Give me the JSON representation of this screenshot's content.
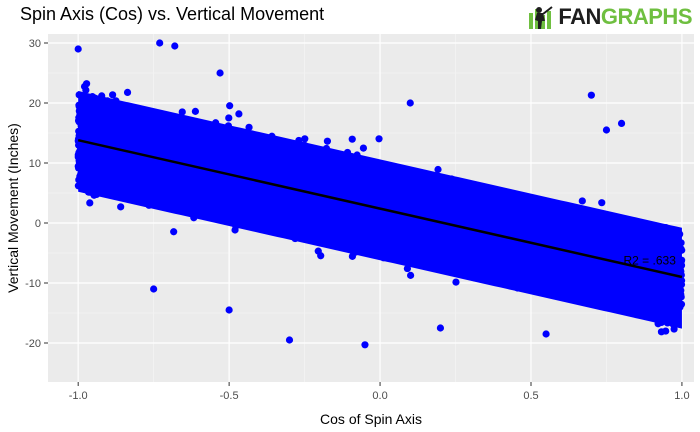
{
  "header": {
    "title": "Spin Axis (Cos) vs. Vertical Movement",
    "brand_fan": "FAN",
    "brand_graphs": "GRAPHS",
    "brand_icon": "batter-logo-icon"
  },
  "chart_data": {
    "type": "scatter",
    "title": "Spin Axis (Cos) vs. Vertical Movement",
    "xlabel": "Cos of Spin Axis",
    "ylabel": "Vertical Movement (Inches)",
    "xlim": [
      -1.1,
      1.04
    ],
    "ylim": [
      -26.5,
      31.5
    ],
    "x_ticks": [
      -1.0,
      -0.5,
      0.0,
      0.5,
      1.0
    ],
    "x_tick_labels": [
      "-1.0",
      "-0.5",
      "0.0",
      "0.5",
      "1.0"
    ],
    "y_ticks": [
      -20,
      -10,
      0,
      10,
      20,
      30
    ],
    "y_tick_labels": [
      "-20",
      "-10",
      "0",
      "10",
      "20",
      "30"
    ],
    "grid": true,
    "point_color": "#0000ff",
    "series": [
      {
        "values": "dense point cloud of pitches spanning x from -1.0 to 1.0; vertical movement centered on the regression line with a spread of roughly ±15 inches"
      }
    ],
    "trend_line": {
      "x": [
        -1.0,
        1.0
      ],
      "y": [
        13.8,
        -9.0
      ],
      "color": "#000000"
    },
    "annotation": "R2 = .633"
  }
}
